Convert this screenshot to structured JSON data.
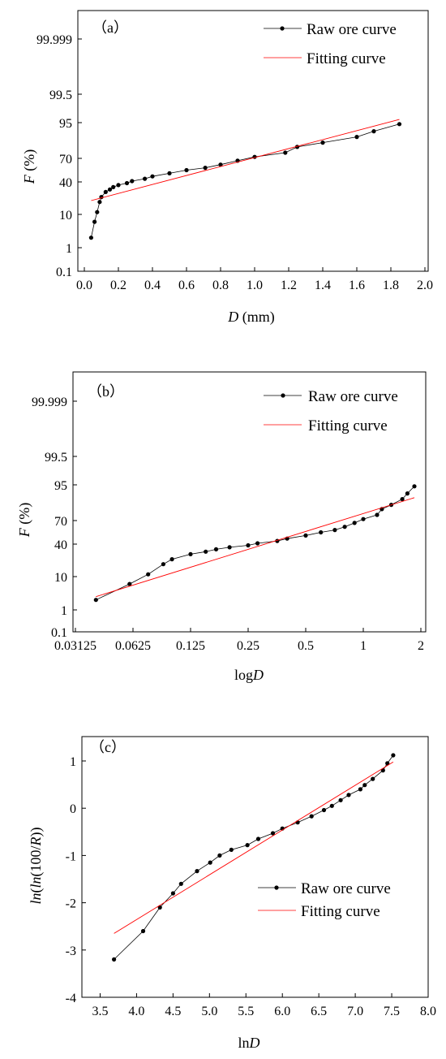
{
  "chart_data": [
    {
      "type": "line",
      "panel_label": "（a）",
      "ylabel_italic": "F",
      "ylabel_rest": " (%)",
      "xlabel_italic": "D",
      "xlabel_rest": " (mm)",
      "xlim": [
        0,
        2
      ],
      "x_ticks": [
        "0.0",
        "0.2",
        "0.4",
        "0.6",
        "0.8",
        "1.0",
        "1.2",
        "1.4",
        "1.6",
        "1.8",
        "2.0"
      ],
      "y_ticks": [
        "0.1",
        "1",
        "10",
        "40",
        "70",
        "95",
        "99.5",
        "99.999"
      ],
      "scale": "probability",
      "legend": [
        "Raw ore curve",
        "Fitting curve"
      ],
      "legend_position": "top-right",
      "series": [
        {
          "name": "Raw ore curve",
          "color": "#000000",
          "marker": "dot",
          "x": [
            0.04,
            0.06,
            0.075,
            0.09,
            0.1,
            0.125,
            0.15,
            0.17,
            0.2,
            0.25,
            0.28,
            0.355,
            0.4,
            0.5,
            0.6,
            0.71,
            0.8,
            0.9,
            1.0,
            1.18,
            1.25,
            1.4,
            1.6,
            1.7,
            1.85
          ],
          "y": [
            2,
            6,
            11,
            17,
            21,
            26,
            29,
            32,
            35,
            38,
            41,
            44,
            47,
            51,
            55,
            58,
            62,
            67,
            71,
            74,
            78,
            81,
            85,
            89,
            94
          ]
        },
        {
          "name": "Fitting curve",
          "color": "#ff0000",
          "x": [
            0.04,
            1.85
          ],
          "y": [
            18,
            95.5
          ]
        }
      ]
    },
    {
      "type": "line",
      "panel_label": "（b）",
      "ylabel_italic": "F",
      "ylabel_rest": " (%)",
      "xlabel_plain": "log",
      "xlabel_italic": "D",
      "x_scale": "log2",
      "x_ticks": [
        "0.03125",
        "0.0625",
        "0.125",
        "0.25",
        "0.5",
        "1",
        "2"
      ],
      "y_ticks": [
        "0.1",
        "1",
        "10",
        "40",
        "70",
        "95",
        "99.5",
        "99.999"
      ],
      "scale": "probability",
      "legend": [
        "Raw ore curve",
        "Fitting curve"
      ],
      "legend_position": "top-right",
      "series": [
        {
          "name": "Raw ore curve",
          "color": "#000000",
          "marker": "dot",
          "x": [
            0.04,
            0.06,
            0.075,
            0.09,
            0.1,
            0.125,
            0.15,
            0.17,
            0.2,
            0.25,
            0.28,
            0.355,
            0.4,
            0.5,
            0.6,
            0.71,
            0.8,
            0.9,
            1.0,
            1.18,
            1.25,
            1.4,
            1.6,
            1.7,
            1.85
          ],
          "y": [
            2,
            6,
            11,
            17,
            21,
            26,
            29,
            32,
            35,
            38,
            41,
            44,
            47,
            51,
            55,
            58,
            62,
            67,
            71,
            74,
            78,
            81,
            85,
            89,
            94
          ]
        },
        {
          "name": "Fitting curve",
          "color": "#ff0000",
          "x": [
            0.04,
            1.85
          ],
          "y": [
            2.5,
            86
          ]
        }
      ]
    },
    {
      "type": "line",
      "panel_label": "（c）",
      "ylabel_italic_a": "ln",
      "ylabel_mid": "(",
      "ylabel_italic_b": "ln",
      "ylabel_mid2": "(100/",
      "ylabel_italic_c": "R",
      "ylabel_end": "))",
      "xlabel_plain": "ln",
      "xlabel_italic": "D",
      "xlim": [
        3.25,
        8.0
      ],
      "ylim": [
        -4,
        1.5
      ],
      "x_ticks": [
        "3.5",
        "4.0",
        "4.5",
        "5.0",
        "5.5",
        "6.0",
        "6.5",
        "7.0",
        "7.5",
        "8.0"
      ],
      "y_ticks": [
        "1",
        "0",
        "-1",
        "-2",
        "-3",
        "-4"
      ],
      "legend": [
        "Raw ore curve",
        "Fitting curve"
      ],
      "legend_position": "lower-right",
      "series": [
        {
          "name": "Raw ore curve",
          "color": "#000000",
          "marker": "dot",
          "x": [
            3.69,
            4.09,
            4.32,
            4.5,
            4.61,
            4.83,
            5.01,
            5.14,
            5.3,
            5.52,
            5.67,
            5.87,
            6.0,
            6.21,
            6.4,
            6.57,
            6.68,
            6.8,
            6.91,
            7.07,
            7.13,
            7.24,
            7.38,
            7.44,
            7.52
          ],
          "y": [
            -3.2,
            -2.6,
            -2.1,
            -1.8,
            -1.6,
            -1.33,
            -1.15,
            -1.0,
            -0.88,
            -0.78,
            -0.65,
            -0.53,
            -0.43,
            -0.3,
            -0.17,
            -0.04,
            0.05,
            0.17,
            0.28,
            0.4,
            0.49,
            0.62,
            0.8,
            0.95,
            1.12
          ]
        },
        {
          "name": "Fitting curve",
          "color": "#ff0000",
          "x": [
            3.69,
            7.52
          ],
          "y": [
            -2.65,
            0.98
          ]
        }
      ]
    }
  ]
}
